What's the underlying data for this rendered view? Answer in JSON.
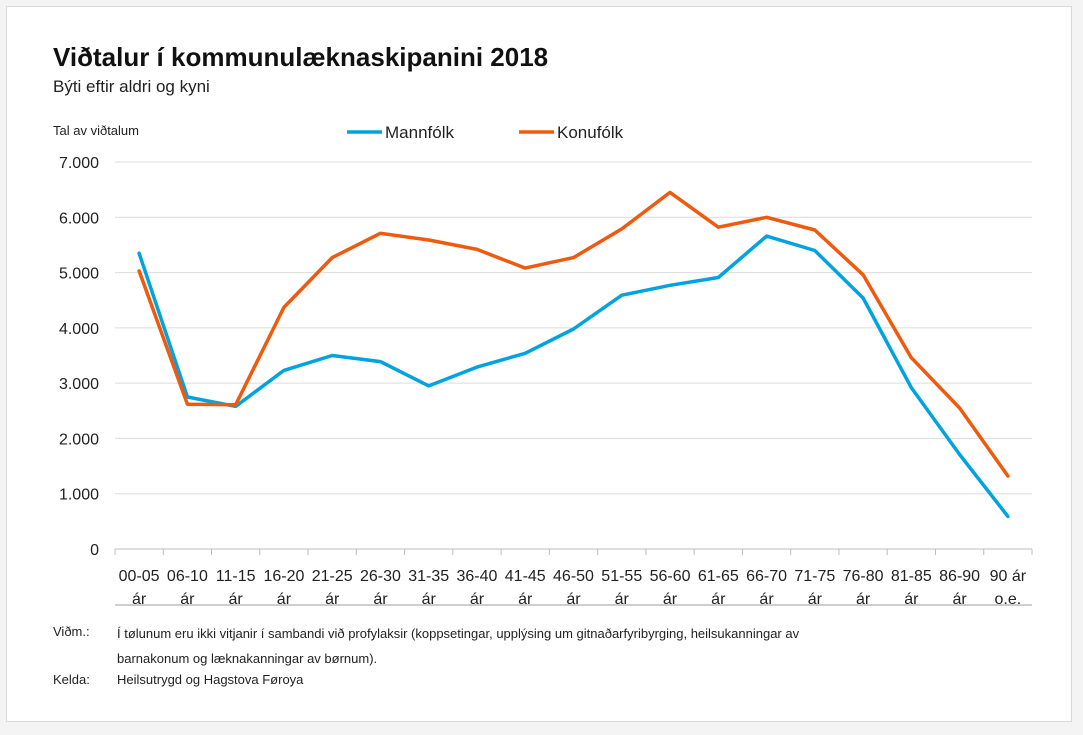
{
  "chart_data": {
    "type": "line",
    "title": "Viðtalur í kommunulæknaskipanini 2018",
    "subtitle": "Býti eftir aldri og kyni",
    "ylabel": "Tal av viðtalum",
    "xlabel": "",
    "ylim": [
      0,
      7000
    ],
    "yticks": [
      "0",
      "1.000",
      "2.000",
      "3.000",
      "4.000",
      "5.000",
      "6.000",
      "7.000"
    ],
    "ytick_values": [
      0,
      1000,
      2000,
      3000,
      4000,
      5000,
      6000,
      7000
    ],
    "grid": true,
    "legend": "top-center",
    "categories": [
      [
        "00-05",
        "ár"
      ],
      [
        "06-10",
        "ár"
      ],
      [
        "11-15",
        "ár"
      ],
      [
        "16-20",
        "ár"
      ],
      [
        "21-25",
        "ár"
      ],
      [
        "26-30",
        "ár"
      ],
      [
        "31-35",
        "ár"
      ],
      [
        "36-40",
        "ár"
      ],
      [
        "41-45",
        "ár"
      ],
      [
        "46-50",
        "ár"
      ],
      [
        "51-55",
        "ár"
      ],
      [
        "56-60",
        "ár"
      ],
      [
        "61-65",
        "ár"
      ],
      [
        "66-70",
        "ár"
      ],
      [
        "71-75",
        "ár"
      ],
      [
        "76-80",
        "ár"
      ],
      [
        "81-85",
        "ár"
      ],
      [
        "86-90",
        "ár"
      ],
      [
        "90 ár",
        "o.e."
      ]
    ],
    "series": [
      {
        "name": "Mannfólk",
        "color": "#00a3e0",
        "values": [
          5350,
          2750,
          2580,
          3230,
          3500,
          3390,
          2950,
          3290,
          3540,
          3980,
          4590,
          4770,
          4910,
          5660,
          5400,
          4540,
          2920,
          1710,
          590
        ]
      },
      {
        "name": "Konufólk",
        "color": "#ee5a0e",
        "values": [
          5030,
          2620,
          2610,
          4370,
          5270,
          5710,
          5590,
          5420,
          5080,
          5270,
          5790,
          6450,
          5820,
          6000,
          5770,
          4960,
          3460,
          2550,
          1320
        ]
      }
    ]
  },
  "notes": {
    "remark_label": "Viðm.:",
    "remark_line1": "Í tølunum eru ikki vitjanir í sambandi við profylaksir (koppsetingar, upplýsing um gitnaðarfyribyrging, heilsukanningar av",
    "remark_line2": "barnakonum og læknakanningar av børnum).",
    "source_label": "Kelda:",
    "source_text": "Heilsutrygd og Hagstova Føroya"
  }
}
